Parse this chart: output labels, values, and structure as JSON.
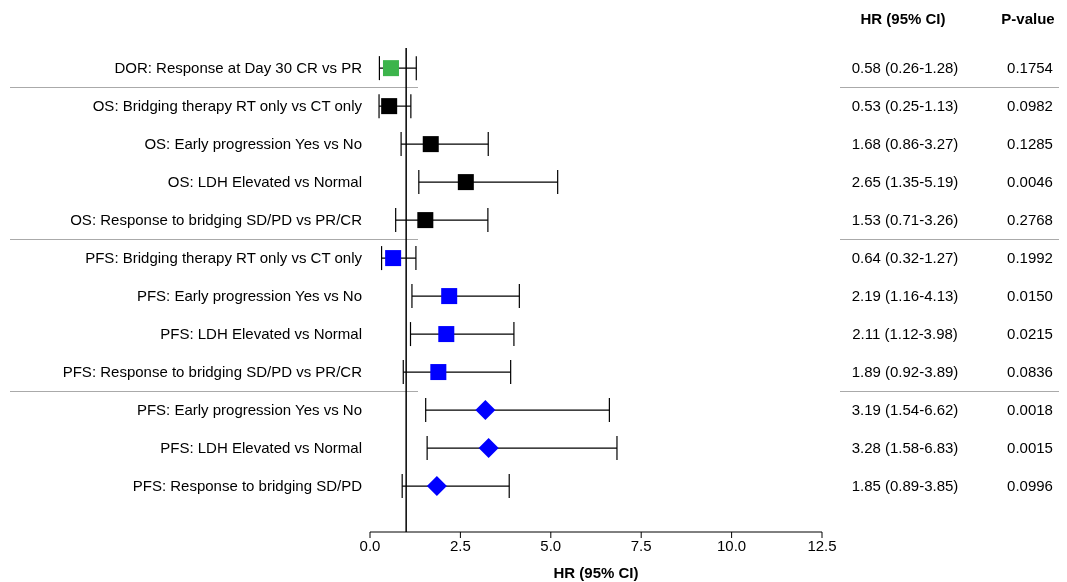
{
  "chart_data": {
    "type": "scatter",
    "orientation": "horizontal",
    "xlabel": "HR (95% CI)",
    "categories": [
      "DOR: Response at Day 30 CR vs PR",
      "OS: Bridging therapy RT only vs CT only",
      "OS: Early progression Yes vs No",
      "OS: LDH Elevated vs Normal",
      "OS: Response to bridging SD/PD vs PR/CR",
      "PFS: Bridging therapy RT only vs CT only",
      "PFS: Early progression Yes vs No",
      "PFS: LDH Elevated vs Normal",
      "PFS: Response to bridging SD/PD vs PR/CR",
      "PFS: Early progression Yes vs No",
      "PFS: LDH Elevated vs Normal",
      "PFS: Response to bridging SD/PD"
    ],
    "series": [
      {
        "color": "#3cb44b",
        "marker": "square",
        "values": [
          0.58,
          null,
          null,
          null,
          null,
          null,
          null,
          null,
          null,
          null,
          null,
          null
        ],
        "errors": [
          [
            0.26,
            1.28
          ],
          null,
          null,
          null,
          null,
          null,
          null,
          null,
          null,
          null,
          null,
          null
        ]
      },
      {
        "color": "#000000",
        "marker": "square",
        "values": [
          null,
          0.53,
          1.68,
          2.65,
          1.53,
          null,
          null,
          null,
          null,
          null,
          null,
          null
        ],
        "errors": [
          null,
          [
            0.25,
            1.13
          ],
          [
            0.86,
            3.27
          ],
          [
            1.35,
            5.19
          ],
          [
            0.71,
            3.26
          ],
          null,
          null,
          null,
          null,
          null,
          null,
          null
        ]
      },
      {
        "color": "#0000ff",
        "marker": "square",
        "values": [
          null,
          null,
          null,
          null,
          null,
          0.64,
          2.19,
          2.11,
          1.89,
          null,
          null,
          null
        ],
        "errors": [
          null,
          null,
          null,
          null,
          null,
          [
            0.32,
            1.27
          ],
          [
            1.16,
            4.13
          ],
          [
            1.12,
            3.98
          ],
          [
            0.92,
            3.89
          ],
          null,
          null,
          null
        ]
      },
      {
        "color": "#0000ff",
        "marker": "diamond",
        "values": [
          null,
          null,
          null,
          null,
          null,
          null,
          null,
          null,
          null,
          3.19,
          3.28,
          1.85
        ],
        "errors": [
          null,
          null,
          null,
          null,
          null,
          null,
          null,
          null,
          null,
          [
            1.54,
            6.62
          ],
          [
            1.58,
            6.83
          ],
          [
            0.89,
            3.85
          ]
        ]
      }
    ],
    "xlim": [
      0,
      12.5
    ],
    "xticks": [
      {
        "value": 0,
        "label": "0.0"
      },
      2.5,
      {
        "value": 5,
        "label": "5.0"
      },
      7.5,
      {
        "value": 10,
        "label": "10.0"
      },
      12.5
    ],
    "ref_lines": [
      {
        "axis": "x",
        "value": 1,
        "color": "#000000"
      }
    ],
    "annotations": [
      "HR (95% CI)",
      "P-value",
      "0.58 (0.26-1.28)",
      "0.53 (0.25-1.13)",
      "1.68 (0.86-3.27)",
      "2.65 (1.35-5.19)",
      "1.53 (0.71-3.26)",
      "0.64 (0.32-1.27)",
      "2.19 (1.16-4.13)",
      "2.11 (1.12-3.98)",
      "1.89 (0.92-3.89)",
      "3.19 (1.54-6.62)",
      "3.28 (1.58-6.83)",
      "1.85 (0.89-3.85)",
      "0.1754",
      "0.0982",
      "0.1285",
      "0.0046",
      "0.2768",
      "0.1992",
      "0.0150",
      "0.0215",
      "0.0836",
      "0.0018",
      "0.0015",
      "0.0996"
    ],
    "grid": false,
    "legend": false
  }
}
